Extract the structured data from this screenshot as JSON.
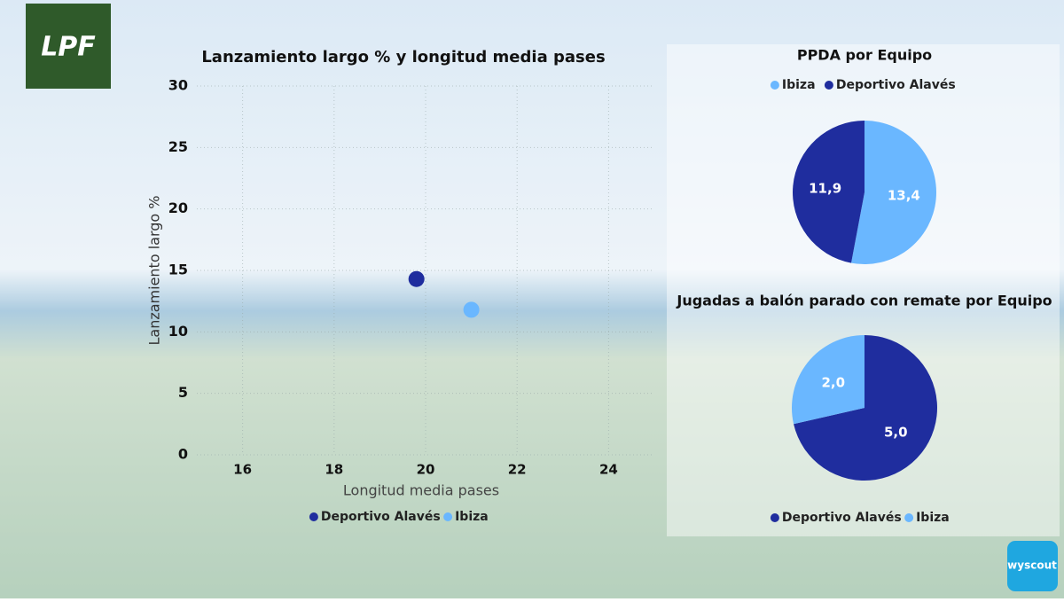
{
  "logo": "LPF",
  "brand": "wyscout",
  "chart_data": [
    {
      "type": "scatter",
      "title": "Lanzamiento largo % y longitud media pases",
      "x_label": "Longitud media pases",
      "y_label": "Lanzamiento largo %",
      "xlim": [
        15,
        25
      ],
      "xticks": [
        16,
        18,
        20,
        22,
        24
      ],
      "ylim": [
        0,
        30
      ],
      "yticks": [
        0,
        5,
        10,
        15,
        20,
        25,
        30
      ],
      "grid": true,
      "series": [
        {
          "name": "Deportivo Alavés",
          "color": "#1f2d9e",
          "x": [
            19.8
          ],
          "values": [
            14.3
          ]
        },
        {
          "name": "Ibiza",
          "color": "#6ab7ff",
          "x": [
            21.0
          ],
          "values": [
            11.8
          ]
        }
      ]
    },
    {
      "type": "pie",
      "title": "PPDA por Equipo",
      "categories": [
        "Ibiza",
        "Deportivo Alavés"
      ],
      "values": [
        13.4,
        11.9
      ],
      "value_labels": [
        "13,4",
        "11,9"
      ],
      "colors": [
        "#6ab7ff",
        "#1f2d9e"
      ],
      "legend": "top"
    },
    {
      "type": "pie",
      "title": "Jugadas a balón parado con remate por Equipo",
      "categories": [
        "Deportivo Alavés",
        "Ibiza"
      ],
      "values": [
        5.0,
        2.0
      ],
      "value_labels": [
        "5,0",
        "2,0"
      ],
      "colors": [
        "#1f2d9e",
        "#6ab7ff"
      ],
      "legend": "bottom"
    }
  ]
}
